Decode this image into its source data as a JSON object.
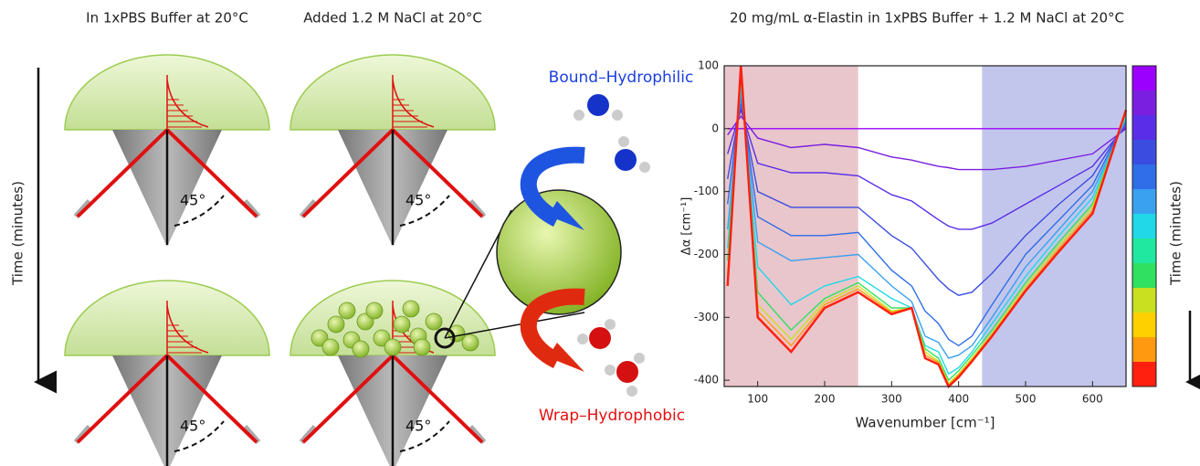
{
  "figure": {
    "left_header": "In 1xPBS Buffer at 20°C",
    "middle_header": "Added 1.2 M NaCl at 20°C",
    "time_label_left": "Time (minutes)",
    "angle_labels": [
      "45°",
      "45°",
      "45°",
      "45°"
    ],
    "bound_label": "Bound–Hydrophilic",
    "wrap_label": "Wrap–Hydrophobic"
  },
  "chart_data": {
    "type": "line",
    "title": "20 mg/mL α-Elastin in 1xPBS Buffer + 1.2 M NaCl at 20°C",
    "x_label": "Wavenumber [cm⁻¹]",
    "y_label": "Δα [cm⁻¹]",
    "colorbar_label": "Time (minutes)",
    "xlim": [
      50,
      650
    ],
    "ylim": [
      -410,
      100
    ],
    "xticks": [
      100,
      200,
      300,
      400,
      500,
      600
    ],
    "yticks": [
      -400,
      -300,
      -200,
      -100,
      0,
      100
    ],
    "shaded_regions": [
      {
        "from": 50,
        "to": 250,
        "color": "#e9c6cc"
      },
      {
        "from": 435,
        "to": 650,
        "color": "#c3c6ec"
      }
    ],
    "colorbar_colors": [
      "#9b00ff",
      "#7a1fe0",
      "#5a2ee8",
      "#3a4de0",
      "#2f6ee8",
      "#3aa0f0",
      "#20d8e8",
      "#20e8a0",
      "#30e060",
      "#c8e020",
      "#ffd000",
      "#ff9a10",
      "#ff2010"
    ],
    "x": [
      55,
      75,
      100,
      150,
      200,
      250,
      300,
      330,
      350,
      370,
      385,
      400,
      420,
      450,
      500,
      550,
      600,
      650
    ],
    "series": [
      {
        "color": "#9b00ff",
        "values": [
          0,
          0,
          0,
          0,
          0,
          0,
          0,
          0,
          0,
          0,
          0,
          0,
          0,
          0,
          0,
          0,
          0,
          0
        ]
      },
      {
        "color": "#7a1fe0",
        "values": [
          -10,
          20,
          -15,
          -30,
          -25,
          -30,
          -45,
          -50,
          -55,
          -60,
          -62,
          -65,
          -65,
          -65,
          -60,
          -50,
          -40,
          0
        ]
      },
      {
        "color": "#5a2ee8",
        "values": [
          -40,
          30,
          -55,
          -70,
          -70,
          -75,
          -105,
          -115,
          -130,
          -145,
          -155,
          -160,
          -160,
          -150,
          -120,
          -90,
          -60,
          5
        ]
      },
      {
        "color": "#3a4de0",
        "values": [
          -80,
          40,
          -100,
          -125,
          -125,
          -125,
          -170,
          -190,
          -215,
          -240,
          -255,
          -265,
          -260,
          -230,
          -170,
          -120,
          -75,
          10
        ]
      },
      {
        "color": "#2f6ee8",
        "values": [
          -120,
          50,
          -140,
          -170,
          -170,
          -165,
          -225,
          -250,
          -290,
          -310,
          -335,
          -345,
          -330,
          -280,
          -200,
          -145,
          -90,
          15
        ]
      },
      {
        "color": "#3aa0f0",
        "values": [
          -160,
          60,
          -180,
          -210,
          -205,
          -200,
          -250,
          -275,
          -330,
          -340,
          -365,
          -360,
          -345,
          -300,
          -220,
          -160,
          -100,
          15
        ]
      },
      {
        "color": "#20d8e8",
        "values": [
          -190,
          70,
          -220,
          -280,
          -250,
          -235,
          -270,
          -285,
          -345,
          -355,
          -390,
          -380,
          -355,
          -310,
          -235,
          -170,
          -110,
          20
        ]
      },
      {
        "color": "#30e060",
        "values": [
          -210,
          80,
          -260,
          -320,
          -270,
          -245,
          -285,
          -285,
          -350,
          -365,
          -400,
          -385,
          -360,
          -320,
          -245,
          -180,
          -120,
          25
        ]
      },
      {
        "color": "#c8e020",
        "values": [
          -230,
          90,
          -280,
          -335,
          -275,
          -250,
          -290,
          -285,
          -355,
          -370,
          -405,
          -390,
          -365,
          -325,
          -250,
          -185,
          -125,
          25
        ]
      },
      {
        "color": "#ff9a10",
        "values": [
          -240,
          95,
          -290,
          -345,
          -280,
          -255,
          -292,
          -285,
          -360,
          -372,
          -408,
          -392,
          -368,
          -328,
          -255,
          -190,
          -130,
          28
        ]
      },
      {
        "color": "#ff2010",
        "values": [
          -250,
          100,
          -300,
          -355,
          -285,
          -260,
          -295,
          -285,
          -365,
          -375,
          -410,
          -395,
          -370,
          -330,
          -258,
          -195,
          -135,
          30
        ]
      }
    ]
  }
}
